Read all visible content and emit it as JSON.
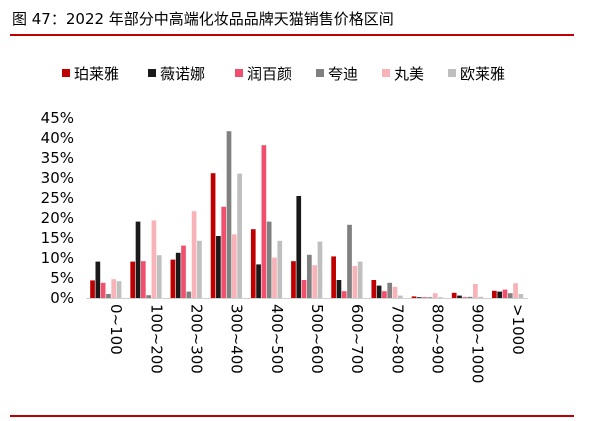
{
  "title": "图 47：2022 年部分中高端化妆品品牌天猫销售价格区间",
  "chart_data": {
    "type": "bar",
    "title": "图 47：2022 年部分中高端化妆品品牌天猫销售价格区间",
    "xlabel": "",
    "ylabel": "",
    "ylim": [
      0,
      0.45
    ],
    "yticks": [
      0,
      0.05,
      0.1,
      0.15,
      0.2,
      0.25,
      0.3,
      0.35,
      0.4,
      0.45
    ],
    "ytick_labels": [
      "0%",
      "5%",
      "10%",
      "15%",
      "20%",
      "25%",
      "30%",
      "35%",
      "40%",
      "45%"
    ],
    "y_format": "percent",
    "grid": false,
    "legend_position": "top",
    "categories": [
      "0~100",
      "100~200",
      "200~300",
      "300~400",
      "400~500",
      "500~600",
      "600~700",
      "700~800",
      "800~900",
      "900~1000",
      ">1000"
    ],
    "series": [
      {
        "name": "珀莱雅",
        "color": "#c00000",
        "values": [
          0.044,
          0.091,
          0.096,
          0.312,
          0.172,
          0.092,
          0.104,
          0.045,
          0.004,
          0.013,
          0.018
        ]
      },
      {
        "name": "薇诺娜",
        "color": "#1a1a1a",
        "values": [
          0.091,
          0.191,
          0.113,
          0.155,
          0.084,
          0.255,
          0.045,
          0.031,
          0.002,
          0.006,
          0.016
        ]
      },
      {
        "name": "润百颜",
        "color": "#f0506e",
        "values": [
          0.038,
          0.092,
          0.131,
          0.228,
          0.382,
          0.045,
          0.017,
          0.017,
          0.002,
          0.002,
          0.021
        ]
      },
      {
        "name": "夸迪",
        "color": "#808080",
        "values": [
          0.01,
          0.007,
          0.016,
          0.417,
          0.191,
          0.108,
          0.183,
          0.038,
          0.002,
          0.003,
          0.012
        ]
      },
      {
        "name": "丸美",
        "color": "#f7b3b8",
        "values": [
          0.047,
          0.194,
          0.217,
          0.159,
          0.101,
          0.082,
          0.08,
          0.028,
          0.012,
          0.035,
          0.037
        ]
      },
      {
        "name": "欧莱雅",
        "color": "#bfbfbf",
        "values": [
          0.042,
          0.107,
          0.143,
          0.311,
          0.143,
          0.141,
          0.091,
          0.006,
          0.002,
          0.003,
          0.01
        ]
      }
    ]
  }
}
